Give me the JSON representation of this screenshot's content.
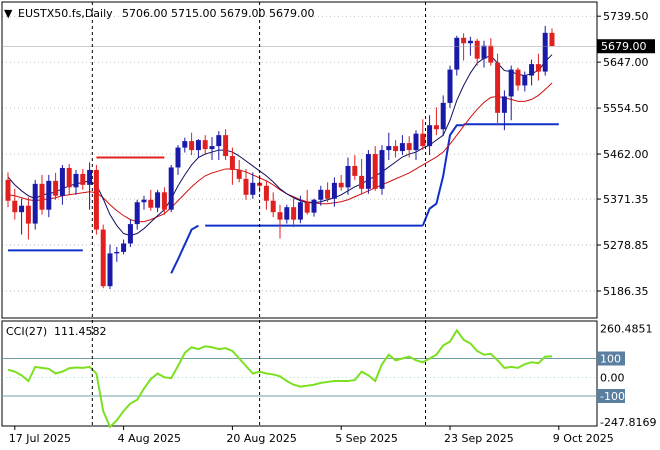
{
  "window": {
    "symbol_line": "EUSTX50.fs,Daily",
    "ohlc_text": "5706.00 5715.00 5679.00 5679.00",
    "current_price_label": "5679.00",
    "cci_title": "CCI(27)",
    "cci_value": "111.4582",
    "menu_glyph": "▼"
  },
  "colors": {
    "bull": "#1a1aa8",
    "bear": "#e02020",
    "ma_fast": "#101060",
    "ma_slow": "#d01010",
    "stop_line": "#1030c8",
    "cci_line": "#7ce020",
    "level_line": "#6fa0a8",
    "grid_line": "#000000",
    "tag_bg": "#000000",
    "tag_fg": "#ffffff",
    "level_tag_bg": "#5a7fa0"
  },
  "chart_data": [
    {
      "type": "candlestick",
      "title": "EUSTX50.fs,Daily",
      "ylim": [
        5140,
        5760
      ],
      "y_ticks": [
        "5739.50",
        "5647.00",
        "5554.50",
        "5462.00",
        "5371.35",
        "5278.85",
        "5186.35"
      ],
      "y_tick_values": [
        5739.5,
        5647.0,
        5554.5,
        5462.0,
        5371.35,
        5278.85,
        5186.35
      ],
      "x_ticks": [
        "17 Jul 2025",
        "4 Aug 2025",
        "20 Aug 2025",
        "5 Sep 2025",
        "23 Sep 2025",
        "9 Oct 2025"
      ],
      "x_tick_bar_index": [
        1,
        17,
        33,
        49,
        65,
        81
      ],
      "candles": [
        [
          5410,
          5425,
          5355,
          5368
        ],
        [
          5368,
          5392,
          5330,
          5345
        ],
        [
          5345,
          5372,
          5300,
          5358
        ],
        [
          5358,
          5375,
          5290,
          5322
        ],
        [
          5322,
          5410,
          5310,
          5402
        ],
        [
          5402,
          5420,
          5340,
          5350
        ],
        [
          5350,
          5420,
          5335,
          5408
        ],
        [
          5408,
          5424,
          5370,
          5378
        ],
        [
          5378,
          5440,
          5360,
          5434
        ],
        [
          5434,
          5442,
          5380,
          5395
        ],
        [
          5395,
          5430,
          5380,
          5422
        ],
        [
          5422,
          5432,
          5390,
          5400
        ],
        [
          5400,
          5445,
          5350,
          5430
        ],
        [
          5430,
          5440,
          5300,
          5310
        ],
        [
          5310,
          5320,
          5192,
          5196
        ],
        [
          5196,
          5280,
          5190,
          5262
        ],
        [
          5262,
          5275,
          5245,
          5265
        ],
        [
          5265,
          5290,
          5260,
          5282
        ],
        [
          5282,
          5330,
          5275,
          5321
        ],
        [
          5321,
          5370,
          5310,
          5365
        ],
        [
          5365,
          5378,
          5350,
          5370
        ],
        [
          5370,
          5390,
          5348,
          5354
        ],
        [
          5354,
          5390,
          5345,
          5385
        ],
        [
          5385,
          5395,
          5340,
          5350
        ],
        [
          5350,
          5440,
          5345,
          5435
        ],
        [
          5435,
          5480,
          5420,
          5475
        ],
        [
          5475,
          5495,
          5465,
          5488
        ],
        [
          5488,
          5505,
          5460,
          5470
        ],
        [
          5470,
          5492,
          5455,
          5490
        ],
        [
          5490,
          5500,
          5460,
          5472
        ],
        [
          5472,
          5496,
          5450,
          5478
        ],
        [
          5478,
          5508,
          5450,
          5500
        ],
        [
          5500,
          5512,
          5450,
          5458
        ],
        [
          5458,
          5475,
          5400,
          5430
        ],
        [
          5430,
          5450,
          5405,
          5412
        ],
        [
          5412,
          5432,
          5370,
          5380
        ],
        [
          5380,
          5425,
          5372,
          5404
        ],
        [
          5404,
          5420,
          5385,
          5398
        ],
        [
          5398,
          5408,
          5350,
          5368
        ],
        [
          5368,
          5385,
          5335,
          5345
        ],
        [
          5345,
          5360,
          5292,
          5330
        ],
        [
          5330,
          5360,
          5322,
          5355
        ],
        [
          5355,
          5372,
          5315,
          5330
        ],
        [
          5330,
          5378,
          5323,
          5365
        ],
        [
          5365,
          5390,
          5340,
          5344
        ],
        [
          5344,
          5372,
          5336,
          5370
        ],
        [
          5370,
          5398,
          5358,
          5390
        ],
        [
          5390,
          5405,
          5365,
          5372
        ],
        [
          5372,
          5415,
          5356,
          5404
        ],
        [
          5404,
          5420,
          5388,
          5395
        ],
        [
          5395,
          5455,
          5380,
          5438
        ],
        [
          5438,
          5460,
          5410,
          5418
        ],
        [
          5418,
          5452,
          5380,
          5392
        ],
        [
          5392,
          5470,
          5382,
          5462
        ],
        [
          5462,
          5478,
          5388,
          5392
        ],
        [
          5392,
          5480,
          5380,
          5470
        ],
        [
          5470,
          5505,
          5450,
          5478
        ],
        [
          5478,
          5490,
          5455,
          5468
        ],
        [
          5468,
          5500,
          5460,
          5484
        ],
        [
          5484,
          5498,
          5455,
          5470
        ],
        [
          5470,
          5510,
          5450,
          5503
        ],
        [
          5503,
          5532,
          5470,
          5478
        ],
        [
          5478,
          5540,
          5460,
          5520
        ],
        [
          5520,
          5556,
          5500,
          5512
        ],
        [
          5512,
          5580,
          5498,
          5565
        ],
        [
          5565,
          5640,
          5555,
          5632
        ],
        [
          5632,
          5700,
          5620,
          5696
        ],
        [
          5696,
          5705,
          5650,
          5685
        ],
        [
          5685,
          5698,
          5660,
          5690
        ],
        [
          5690,
          5694,
          5640,
          5654
        ],
        [
          5654,
          5690,
          5636,
          5680
        ],
        [
          5680,
          5695,
          5640,
          5646
        ],
        [
          5646,
          5664,
          5520,
          5545
        ],
        [
          5545,
          5590,
          5510,
          5578
        ],
        [
          5578,
          5640,
          5530,
          5632
        ],
        [
          5632,
          5636,
          5590,
          5600
        ],
        [
          5600,
          5628,
          5588,
          5620
        ],
        [
          5620,
          5652,
          5600,
          5643
        ],
        [
          5643,
          5664,
          5610,
          5628
        ],
        [
          5628,
          5720,
          5620,
          5706
        ],
        [
          5706,
          5715,
          5679,
          5679
        ]
      ],
      "ma_fast": [
        5416,
        5400,
        5388,
        5378,
        5372,
        5380,
        5382,
        5386,
        5392,
        5398,
        5402,
        5405,
        5408,
        5400,
        5372,
        5340,
        5318,
        5302,
        5298,
        5302,
        5312,
        5325,
        5338,
        5350,
        5372,
        5398,
        5420,
        5440,
        5455,
        5462,
        5466,
        5470,
        5470,
        5466,
        5458,
        5448,
        5438,
        5428,
        5418,
        5406,
        5392,
        5382,
        5374,
        5368,
        5364,
        5364,
        5366,
        5370,
        5374,
        5380,
        5388,
        5396,
        5402,
        5410,
        5418,
        5426,
        5436,
        5446,
        5456,
        5462,
        5466,
        5474,
        5480,
        5490,
        5500,
        5530,
        5570,
        5600,
        5625,
        5645,
        5655,
        5660,
        5645,
        5630,
        5628,
        5622,
        5620,
        5624,
        5630,
        5648,
        5662
      ],
      "ma_slow": [
        5380,
        5378,
        5374,
        5370,
        5368,
        5370,
        5372,
        5374,
        5378,
        5380,
        5382,
        5384,
        5386,
        5384,
        5374,
        5360,
        5348,
        5338,
        5330,
        5326,
        5326,
        5330,
        5336,
        5342,
        5354,
        5368,
        5382,
        5396,
        5408,
        5418,
        5424,
        5428,
        5432,
        5432,
        5430,
        5426,
        5420,
        5414,
        5408,
        5400,
        5390,
        5382,
        5376,
        5370,
        5366,
        5364,
        5362,
        5362,
        5364,
        5366,
        5370,
        5376,
        5382,
        5388,
        5394,
        5400,
        5406,
        5412,
        5418,
        5424,
        5432,
        5440,
        5448,
        5456,
        5466,
        5482,
        5500,
        5518,
        5536,
        5552,
        5566,
        5576,
        5578,
        5575,
        5572,
        5568,
        5568,
        5572,
        5580,
        5592,
        5605
      ],
      "stop_segments": [
        {
          "from": 0,
          "to": 11,
          "value": 5268
        },
        {
          "from": 13,
          "to": 23,
          "value": 5455
        },
        {
          "from": 24,
          "to": 28,
          "values": [
            5222,
            5250,
            5280,
            5310,
            5318
          ]
        },
        {
          "from": 29,
          "to": 61,
          "value": 5318
        },
        {
          "from": 61,
          "to": 67,
          "values": [
            5318,
            5352,
            5362,
            5418,
            5500,
            5520,
            5520
          ]
        },
        {
          "from": 67,
          "to": 81,
          "value": 5522
        }
      ]
    },
    {
      "type": "line",
      "title": "CCI(27)",
      "ylim": [
        -260,
        300
      ],
      "y_ticks": [
        "260.4851",
        "100",
        "0.00",
        "-100",
        "-247.8169"
      ],
      "y_tick_values": [
        260.4851,
        100,
        0,
        -100,
        -247.8169
      ],
      "levels": [
        100,
        -100
      ],
      "values": [
        40,
        30,
        10,
        -20,
        55,
        50,
        45,
        20,
        30,
        48,
        52,
        50,
        55,
        20,
        -180,
        -265,
        -230,
        -180,
        -140,
        -120,
        -60,
        -10,
        20,
        0,
        -5,
        60,
        130,
        160,
        150,
        165,
        160,
        150,
        155,
        140,
        100,
        60,
        20,
        30,
        20,
        15,
        5,
        -20,
        -40,
        -50,
        -45,
        -40,
        -30,
        -25,
        -20,
        -20,
        -20,
        -15,
        30,
        10,
        -20,
        70,
        120,
        90,
        100,
        110,
        90,
        80,
        100,
        120,
        170,
        190,
        250,
        200,
        180,
        140,
        120,
        125,
        90,
        50,
        55,
        50,
        70,
        80,
        75,
        110,
        111.4582
      ]
    }
  ]
}
